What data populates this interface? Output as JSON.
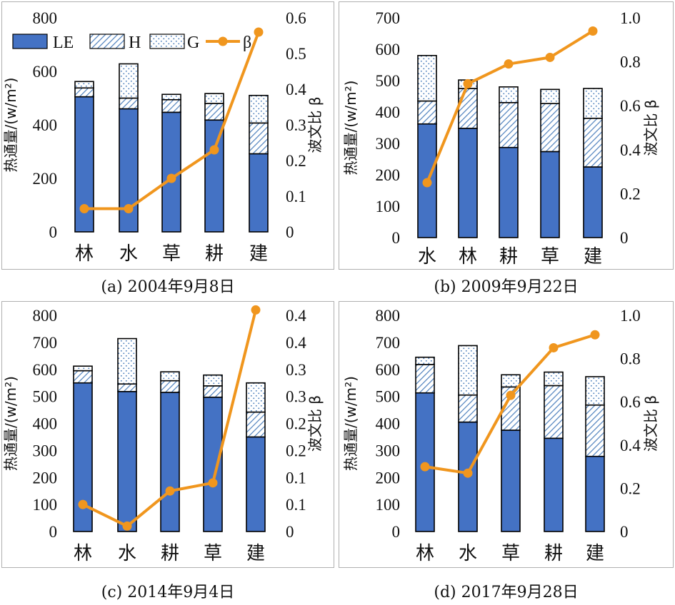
{
  "colors": {
    "LE": "#4472c4",
    "H_hatch": "#4f81bd",
    "G_dots": "#4f81bd",
    "beta": "#f0961e",
    "frame": "#b0b0b0"
  },
  "legend": [
    "LE",
    "H",
    "G",
    "β"
  ],
  "chart_data": [
    {
      "type": "bar",
      "stacked": true,
      "caption": "(a) 2004年9月8日",
      "categories": [
        "林",
        "水",
        "草",
        "耕",
        "建"
      ],
      "ylabel": "热通量/(w/m²)",
      "y2label": "波文比 β",
      "ylim": [
        0,
        800
      ],
      "yticks": [
        0,
        200,
        400,
        600,
        800
      ],
      "y2lim": [
        0,
        0.6
      ],
      "y2ticks": [
        "0",
        "0.1",
        "0.2",
        "0.3",
        "0.4",
        "0.5",
        "0.6"
      ],
      "series": [
        {
          "name": "LE",
          "values": [
            505,
            460,
            447,
            418,
            292
          ]
        },
        {
          "name": "H",
          "values": [
            33,
            40,
            47,
            62,
            115
          ]
        },
        {
          "name": "G",
          "values": [
            24,
            128,
            20,
            37,
            103
          ]
        }
      ],
      "line_series": {
        "name": "β",
        "values": [
          0.065,
          0.065,
          0.15,
          0.23,
          0.56
        ]
      },
      "legend_position": "top"
    },
    {
      "type": "bar",
      "stacked": true,
      "caption": "(b) 2009年9月22日",
      "categories": [
        "水",
        "林",
        "耕",
        "草",
        "建"
      ],
      "ylabel": "热通量/(w/m²)",
      "y2label": "波文比 β",
      "ylim": [
        0,
        700
      ],
      "yticks": [
        0,
        100,
        200,
        300,
        400,
        500,
        600,
        700
      ],
      "y2lim": [
        0,
        1.0
      ],
      "y2ticks": [
        "0",
        "0.2",
        "0.4",
        "0.6",
        "0.8",
        "1.0"
      ],
      "series": [
        {
          "name": "LE",
          "values": [
            362,
            348,
            287,
            274,
            225
          ]
        },
        {
          "name": "H",
          "values": [
            73,
            127,
            143,
            153,
            155
          ]
        },
        {
          "name": "G",
          "values": [
            145,
            27,
            50,
            45,
            95
          ]
        }
      ],
      "line_series": {
        "name": "β",
        "values": [
          0.25,
          0.7,
          0.79,
          0.82,
          0.94
        ]
      }
    },
    {
      "type": "bar",
      "stacked": true,
      "caption": "(c) 2014年9月4日",
      "categories": [
        "林",
        "水",
        "耕",
        "草",
        "建"
      ],
      "ylabel": "热通量/(w/m²)",
      "y2label": "波文比 β",
      "ylim": [
        0,
        800
      ],
      "yticks": [
        0,
        100,
        200,
        300,
        400,
        500,
        600,
        700,
        800
      ],
      "y2lim": [
        0,
        0.4
      ],
      "y2ticks": [
        "0",
        "0.1",
        "0.1",
        "0.2",
        "0.2",
        "0.3",
        "0.3",
        "0.4",
        "0.4"
      ],
      "series": [
        {
          "name": "LE",
          "values": [
            550,
            518,
            515,
            497,
            350
          ]
        },
        {
          "name": "H",
          "values": [
            45,
            28,
            43,
            42,
            92
          ]
        },
        {
          "name": "G",
          "values": [
            17,
            168,
            33,
            40,
            108
          ]
        }
      ],
      "line_series": {
        "name": "β",
        "values": [
          0.05,
          0.01,
          0.075,
          0.09,
          0.41
        ]
      }
    },
    {
      "type": "bar",
      "stacked": true,
      "caption": "(d) 2017年9月28日",
      "categories": [
        "林",
        "水",
        "草",
        "耕",
        "建"
      ],
      "ylabel": "热通量/(w/m²)",
      "y2label": "波文比 β",
      "ylim": [
        0,
        800
      ],
      "yticks": [
        0,
        100,
        200,
        300,
        400,
        500,
        600,
        700,
        800
      ],
      "y2lim": [
        0,
        1.0
      ],
      "y2ticks": [
        "0",
        "0.2",
        "0.4",
        "0.6",
        "0.8",
        "1.0"
      ],
      "series": [
        {
          "name": "LE",
          "values": [
            513,
            405,
            375,
            345,
            278
          ]
        },
        {
          "name": "H",
          "values": [
            105,
            100,
            160,
            195,
            190
          ]
        },
        {
          "name": "G",
          "values": [
            27,
            183,
            45,
            50,
            105
          ]
        }
      ],
      "line_series": {
        "name": "β",
        "values": [
          0.3,
          0.27,
          0.63,
          0.85,
          0.91
        ]
      }
    }
  ]
}
